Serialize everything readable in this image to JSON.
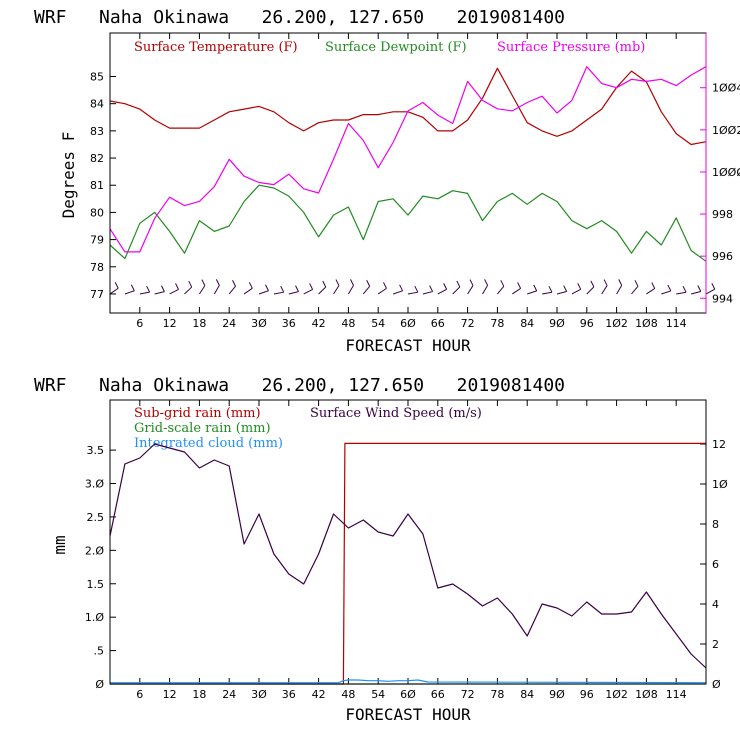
{
  "chart_data": [
    {
      "type": "line",
      "title": "WRF   Naha Okinawa   26.200, 127.650   2019081400",
      "xlabel": "FORECAST HOUR",
      "ylabel": "Degrees F",
      "xlim": [
        0,
        120
      ],
      "ylim": [
        76.3,
        86.6
      ],
      "y2lim": [
        993.3,
        1006.6
      ],
      "xticks": [
        6,
        12,
        18,
        24,
        30,
        36,
        42,
        48,
        54,
        60,
        66,
        72,
        78,
        84,
        90,
        96,
        102,
        108,
        114
      ],
      "xtick_labels": [
        "6",
        "12",
        "18",
        "24",
        "3Ø",
        "36",
        "42",
        "48",
        "54",
        "6Ø",
        "66",
        "72",
        "78",
        "84",
        "9Ø",
        "96",
        "1Ø2",
        "1Ø8",
        "114"
      ],
      "yticks": [
        77,
        78,
        79,
        80,
        81,
        82,
        83,
        84,
        85
      ],
      "y2ticks": [
        994,
        996,
        998,
        1000,
        1002,
        1004
      ],
      "y2tick_labels": [
        "994",
        "996",
        "998",
        "1ØØØ",
        "1ØØ2",
        "1ØØ4"
      ],
      "legend_placement": "top",
      "colors": {
        "temperature": "#b30000",
        "dewpoint": "#228b22",
        "pressure": "#ee00ee",
        "wind": "#3a0046",
        "frame": "#000000",
        "right_axis": "#ee00ee"
      },
      "series": [
        {
          "name": "Surface Temperature (F)",
          "axis": "left",
          "color": "#b30000",
          "x": [
            0,
            3,
            6,
            9,
            12,
            15,
            18,
            21,
            24,
            27,
            30,
            33,
            36,
            39,
            42,
            45,
            48,
            51,
            54,
            57,
            60,
            63,
            66,
            69,
            72,
            75,
            78,
            81,
            84,
            87,
            90,
            93,
            96,
            99,
            102,
            105,
            108,
            111,
            114,
            117,
            120
          ],
          "y": [
            84.1,
            84.0,
            83.8,
            83.4,
            83.1,
            83.1,
            83.1,
            83.4,
            83.7,
            83.8,
            83.9,
            83.7,
            83.3,
            83.0,
            83.3,
            83.4,
            83.4,
            83.6,
            83.6,
            83.7,
            83.7,
            83.5,
            83.0,
            83.0,
            83.4,
            84.2,
            85.3,
            84.3,
            83.3,
            83.0,
            82.8,
            83.0,
            83.4,
            83.8,
            84.6,
            85.2,
            84.8,
            83.7,
            82.9,
            82.5,
            82.6
          ]
        },
        {
          "name": "Surface Dewpoint (F)",
          "axis": "left",
          "color": "#228b22",
          "x": [
            0,
            3,
            6,
            9,
            12,
            15,
            18,
            21,
            24,
            27,
            30,
            33,
            36,
            39,
            42,
            45,
            48,
            51,
            54,
            57,
            60,
            63,
            66,
            69,
            72,
            75,
            78,
            81,
            84,
            87,
            90,
            93,
            96,
            99,
            102,
            105,
            108,
            111,
            114,
            117,
            120
          ],
          "y": [
            78.8,
            78.3,
            79.6,
            80.0,
            79.3,
            78.5,
            79.7,
            79.3,
            79.5,
            80.4,
            81.0,
            80.9,
            80.6,
            80.0,
            79.1,
            79.9,
            80.2,
            79.0,
            80.4,
            80.5,
            79.9,
            80.6,
            80.5,
            80.8,
            80.7,
            79.7,
            80.4,
            80.7,
            80.3,
            80.7,
            80.4,
            79.7,
            79.4,
            79.7,
            79.3,
            78.5,
            79.3,
            78.8,
            79.8,
            78.6,
            78.2
          ]
        },
        {
          "name": "Surface Pressure (mb)",
          "axis": "right",
          "color": "#ee00ee",
          "x": [
            0,
            3,
            6,
            9,
            12,
            15,
            18,
            21,
            24,
            27,
            30,
            33,
            36,
            39,
            42,
            45,
            48,
            51,
            54,
            57,
            60,
            63,
            66,
            69,
            72,
            75,
            78,
            81,
            84,
            87,
            90,
            93,
            96,
            99,
            102,
            105,
            108,
            111,
            114,
            117,
            120
          ],
          "y": [
            997.3,
            996.2,
            996.2,
            997.8,
            998.8,
            998.4,
            998.6,
            999.3,
            1000.6,
            999.8,
            999.5,
            999.4,
            999.9,
            999.2,
            999.0,
            1000.6,
            1002.3,
            1001.5,
            1000.2,
            1001.4,
            1002.9,
            1003.3,
            1002.7,
            1002.3,
            1004.3,
            1003.4,
            1003.0,
            1002.9,
            1003.3,
            1003.6,
            1002.8,
            1003.4,
            1005.0,
            1004.2,
            1004.0,
            1004.4,
            1004.3,
            1004.4,
            1004.1,
            1004.6,
            1005.0
          ]
        },
        {
          "name": "",
          "axis": "left",
          "color": "#3a0046",
          "style": "wind-barbs",
          "x": [
            0,
            3,
            6,
            9,
            12,
            15,
            18,
            21,
            24,
            27,
            30,
            33,
            36,
            39,
            42,
            45,
            48,
            51,
            54,
            57,
            60,
            63,
            66,
            69,
            72,
            75,
            78,
            81,
            84,
            87,
            90,
            93,
            96,
            99,
            102,
            105,
            108,
            111,
            114,
            117,
            120
          ],
          "y": [
            77.0,
            77.0,
            77.0,
            77.0,
            77.0,
            77.0,
            77.0,
            77.0,
            77.0,
            77.0,
            77.0,
            77.0,
            77.0,
            77.0,
            77.0,
            77.0,
            77.0,
            77.0,
            77.0,
            77.0,
            77.0,
            77.0,
            77.0,
            77.0,
            77.0,
            77.0,
            77.0,
            77.0,
            77.0,
            77.0,
            77.0,
            77.0,
            77.0,
            77.0,
            77.0,
            77.0,
            77.0,
            77.0,
            77.0,
            77.0,
            77.0
          ]
        }
      ]
    },
    {
      "type": "line",
      "title": "WRF   Naha Okinawa   26.200, 127.650   2019081400",
      "xlabel": "FORECAST HOUR",
      "ylabel": "mm",
      "xlim": [
        0,
        120
      ],
      "ylim": [
        0,
        4.25
      ],
      "y2lim": [
        0,
        14.2
      ],
      "xticks": [
        6,
        12,
        18,
        24,
        30,
        36,
        42,
        48,
        54,
        60,
        66,
        72,
        78,
        84,
        90,
        96,
        102,
        108,
        114
      ],
      "xtick_labels": [
        "6",
        "12",
        "18",
        "24",
        "3Ø",
        "36",
        "42",
        "48",
        "54",
        "6Ø",
        "66",
        "72",
        "78",
        "84",
        "9Ø",
        "96",
        "1Ø2",
        "1Ø8",
        "114"
      ],
      "yticks": [
        0,
        0.5,
        1.0,
        1.5,
        2.0,
        2.5,
        3.0,
        3.5
      ],
      "ytick_labels": [
        "Ø",
        ".5",
        "1.Ø",
        "1.5",
        "2.Ø",
        "2.5",
        "3.Ø",
        "3.5"
      ],
      "y2ticks": [
        0,
        2,
        4,
        6,
        8,
        10,
        12
      ],
      "y2tick_labels": [
        "Ø",
        "2",
        "4",
        "6",
        "8",
        "1Ø",
        "12"
      ],
      "legend_placement": "top-left",
      "colors": {
        "subgrid": "#b30000",
        "gridscale": "#228b22",
        "cloud": "#1e90ff",
        "wind": "#3a0046",
        "frame": "#000000"
      },
      "series": [
        {
          "name": "Sub-grid rain (mm)",
          "axis": "left",
          "color": "#b30000",
          "x": [
            0,
            47,
            47.3,
            120
          ],
          "y": [
            0,
            0,
            3.6,
            3.6
          ]
        },
        {
          "name": "Grid-scale rain (mm)",
          "axis": "left",
          "color": "#228b22",
          "x": [
            0,
            120
          ],
          "y": [
            0,
            0
          ]
        },
        {
          "name": "Integrated cloud (mm)",
          "axis": "left",
          "color": "#1e90ff",
          "x": [
            0,
            46,
            47,
            48,
            50,
            52,
            54,
            56,
            58,
            60,
            62,
            64,
            120
          ],
          "y": [
            0.02,
            0.02,
            0.05,
            0.06,
            0.06,
            0.05,
            0.05,
            0.04,
            0.05,
            0.05,
            0.06,
            0.03,
            0.02
          ]
        },
        {
          "name": "Surface Wind Speed (m/s)",
          "axis": "right",
          "color": "#3a0046",
          "x": [
            0,
            3,
            6,
            9,
            12,
            15,
            18,
            21,
            24,
            27,
            30,
            33,
            36,
            39,
            42,
            45,
            48,
            51,
            54,
            57,
            60,
            63,
            66,
            69,
            72,
            75,
            78,
            81,
            84,
            87,
            90,
            93,
            96,
            99,
            102,
            105,
            108,
            111,
            114,
            117,
            120
          ],
          "y": [
            7.4,
            11.0,
            11.3,
            12.0,
            11.8,
            11.6,
            10.8,
            11.2,
            10.9,
            7.0,
            8.5,
            6.5,
            5.5,
            5.0,
            6.5,
            8.5,
            7.8,
            8.2,
            7.6,
            7.4,
            8.5,
            7.5,
            4.8,
            5.0,
            4.5,
            3.9,
            4.3,
            3.5,
            2.4,
            4.0,
            3.8,
            3.4,
            4.1,
            3.5,
            3.5,
            3.6,
            4.6,
            3.5,
            2.5,
            1.5,
            0.8
          ]
        }
      ]
    }
  ]
}
